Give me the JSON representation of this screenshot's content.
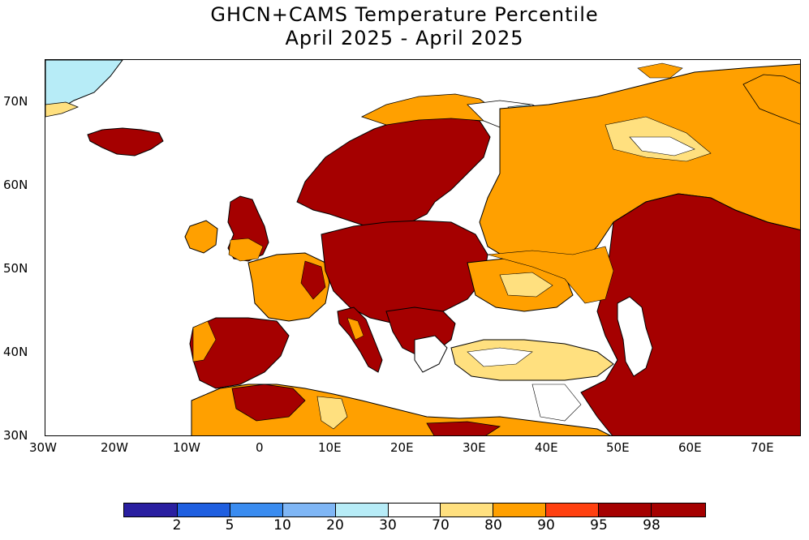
{
  "title_line1": "GHCN+CAMS Temperature Percentile",
  "title_line2": "April 2025 - April 2025",
  "map": {
    "lon_ticks": [
      "30W",
      "20W",
      "10W",
      "0",
      "10E",
      "20E",
      "30E",
      "40E",
      "50E",
      "60E",
      "70E"
    ],
    "lat_ticks": [
      "70N",
      "60N",
      "50N",
      "40N",
      "30N"
    ],
    "lon_range": [
      -30,
      75
    ],
    "lat_range": [
      30,
      75
    ]
  },
  "colorbar": {
    "colors": [
      "#2a1fa0",
      "#1f5fe0",
      "#3a8cf0",
      "#7fb6f5",
      "#b7ecf7",
      "#ffffff",
      "#ffe07f",
      "#ffa000",
      "#ff4010",
      "#a50000",
      "#a50000"
    ],
    "labels": [
      "2",
      "5",
      "10",
      "20",
      "30",
      "70",
      "80",
      "90",
      "95",
      "98"
    ]
  },
  "legend_colors": {
    "above_98": "#a50000",
    "p90_95": "#ffa000",
    "p80_90": "#ffa000",
    "p70_80": "#ffe07f",
    "p30_70": "#ffffff",
    "below_30": "#b7ecf7"
  }
}
